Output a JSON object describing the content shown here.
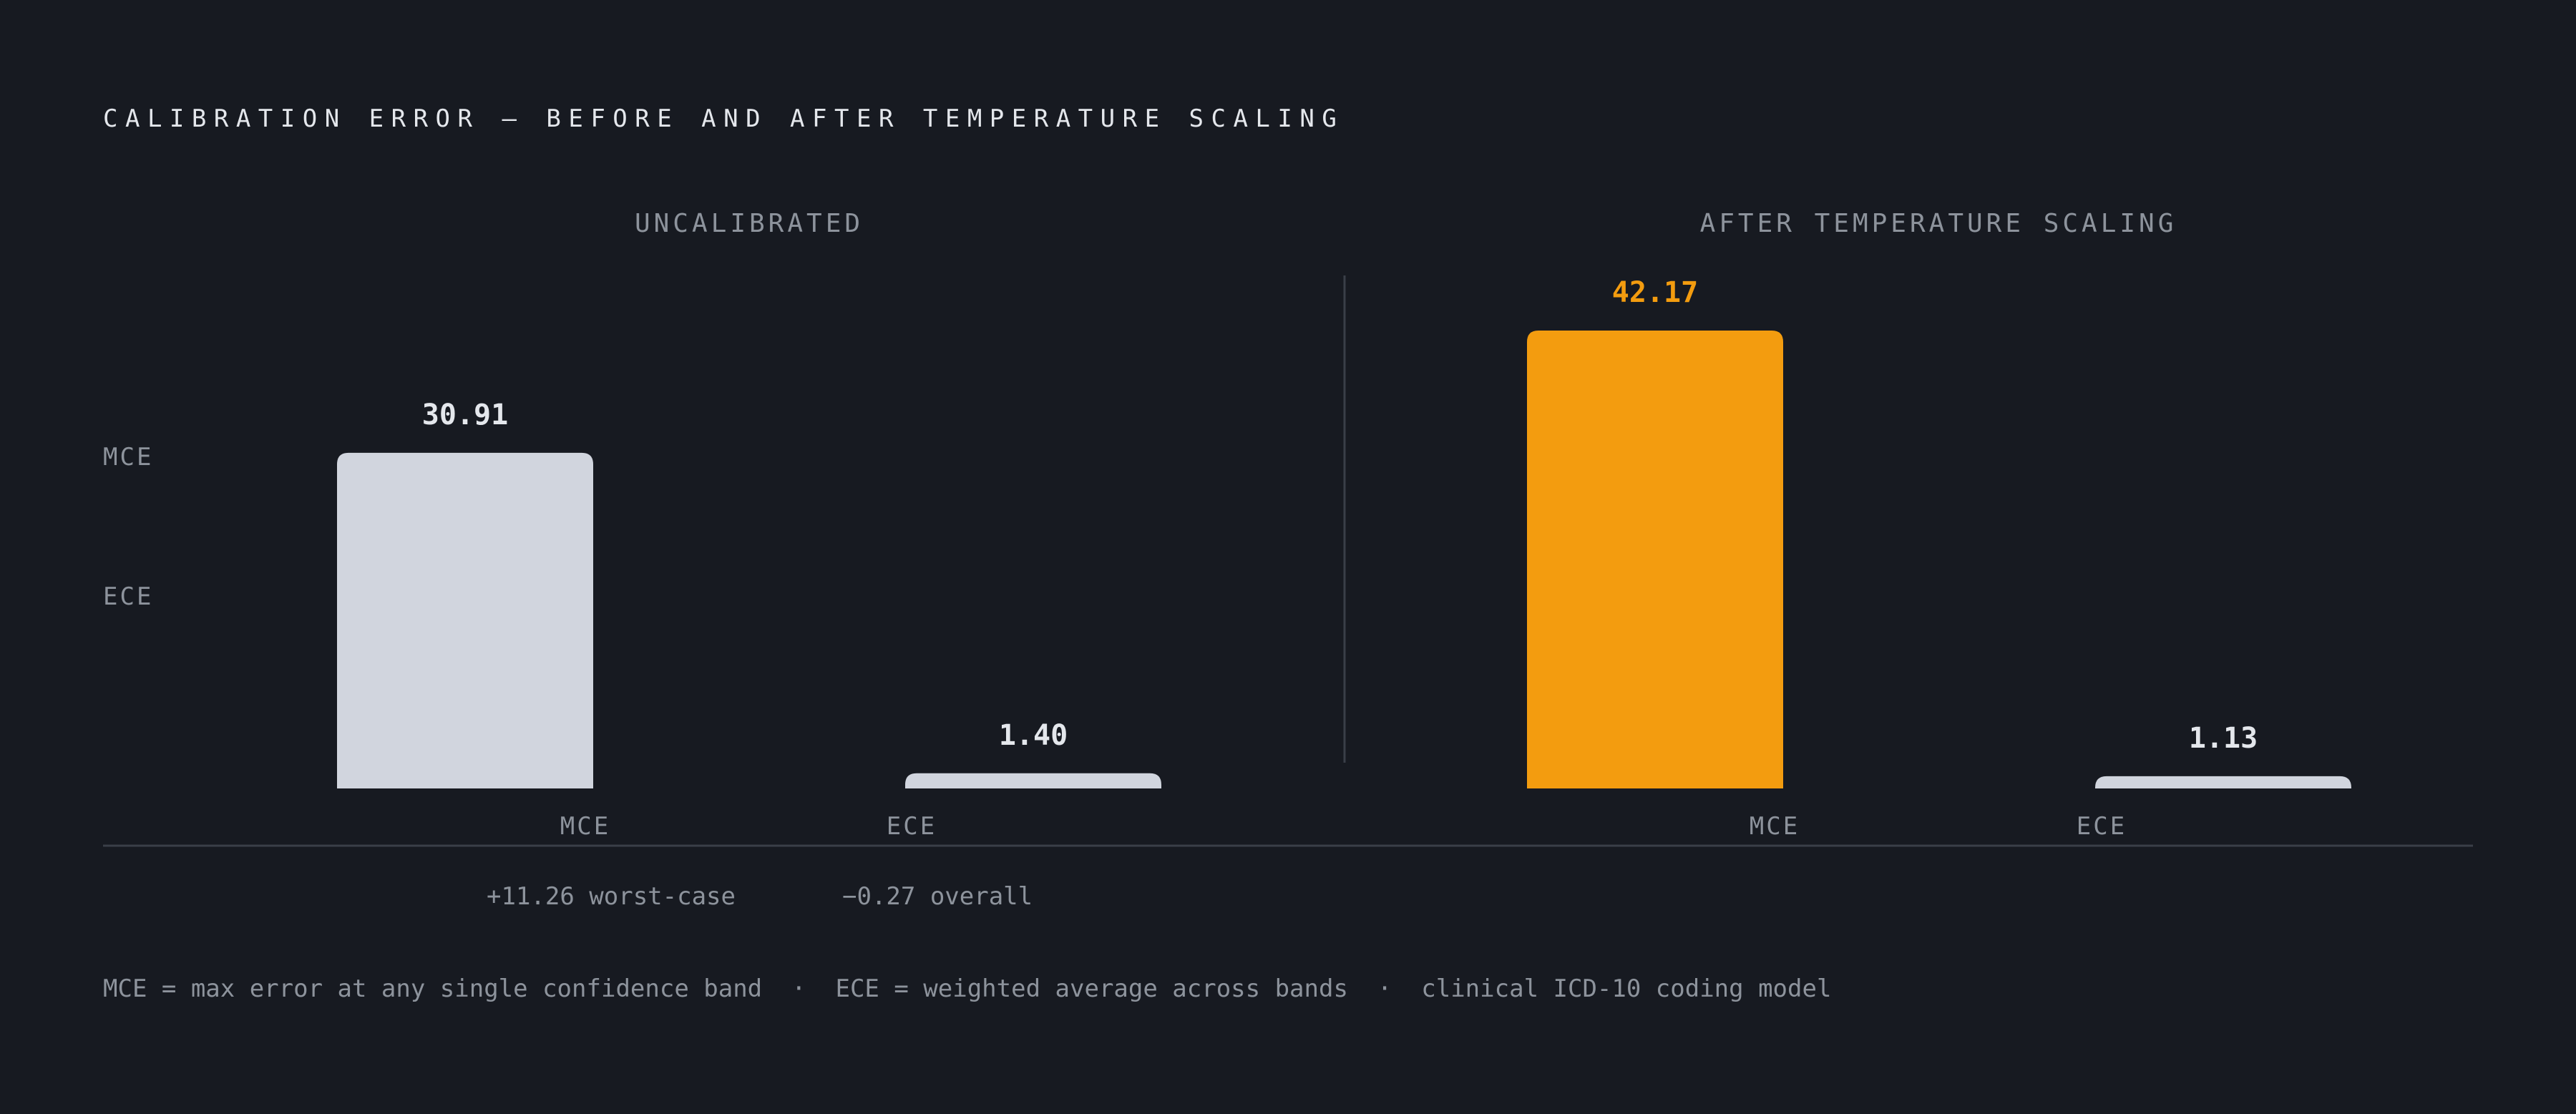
{
  "title": "CALIBRATION ERROR — BEFORE AND AFTER TEMPERATURE SCALING",
  "legend_labels": [
    "MCE",
    "ECE"
  ],
  "deltas": {
    "mce": "+11.26 worst-case",
    "ece": "−0.27 overall"
  },
  "footnote": "MCE = max error at any single confidence band  ·  ECE = weighted average across bands  ·  clinical ICD-10 coding model",
  "colors": {
    "background": "#171a21",
    "neutral_bar": "#d1d5de",
    "highlight_bar": "#f39c0f",
    "muted_text": "#8d939c",
    "divider": "#3a3f48"
  },
  "chart_data": [
    {
      "type": "bar",
      "title": "UNCALIBRATED",
      "categories": [
        "MCE",
        "ECE"
      ],
      "values": [
        30.91,
        1.4
      ],
      "value_labels": [
        "30.91",
        "1.40"
      ],
      "highlight": [
        false,
        false
      ],
      "ylim": [
        0,
        42.17
      ],
      "grid": false
    },
    {
      "type": "bar",
      "title": "AFTER TEMPERATURE SCALING",
      "categories": [
        "MCE",
        "ECE"
      ],
      "values": [
        42.17,
        1.13
      ],
      "value_labels": [
        "42.17",
        "1.13"
      ],
      "highlight": [
        true,
        false
      ],
      "ylim": [
        0,
        42.17
      ],
      "grid": false
    }
  ]
}
